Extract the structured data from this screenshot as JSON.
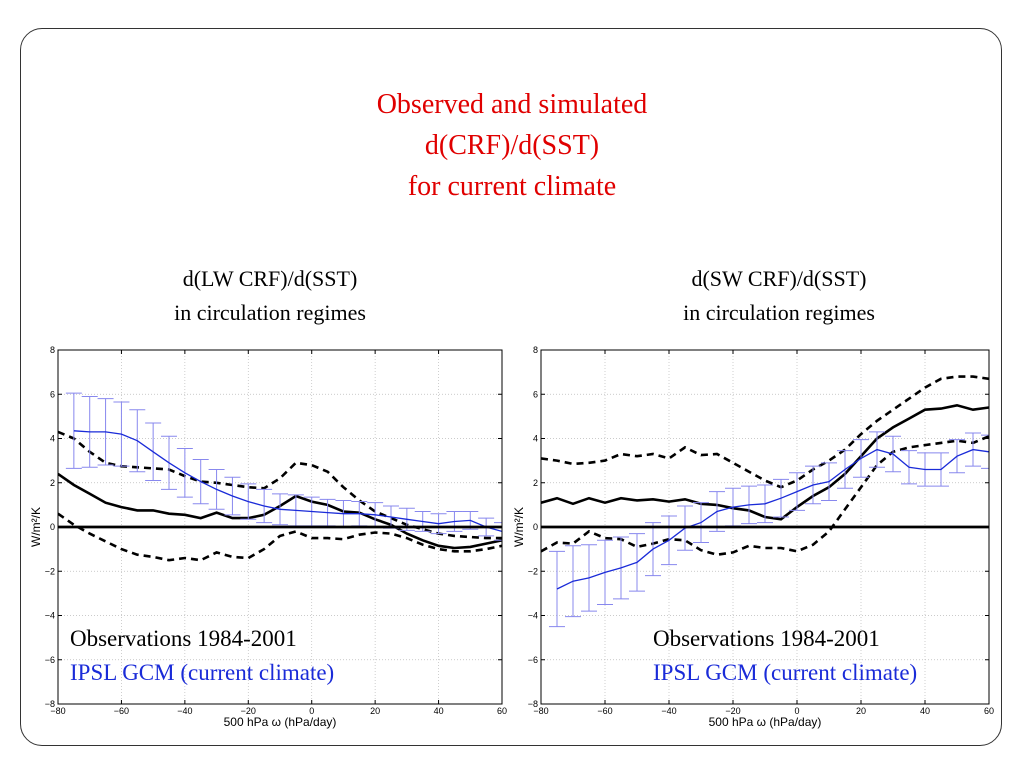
{
  "main_title": [
    "Observed and simulated",
    "d(CRF)/d(SST)",
    "for current climate"
  ],
  "legend": {
    "observations": "Observations 1984-2001",
    "gcm": "IPSL GCM (current climate)"
  },
  "colors": {
    "title": "#e00000",
    "gcm": "#1a2bd8",
    "obs": "#000000",
    "errorbar": "#8888ee"
  },
  "chart_data": [
    {
      "type": "line",
      "title": [
        "d(LW CRF)/d(SST)",
        "in circulation regimes"
      ],
      "xlabel": "500 hPa ω (hPa/day)",
      "ylabel": "W/m²/K",
      "xlim": [
        -80,
        60
      ],
      "ylim": [
        -8,
        8
      ],
      "xticks": [
        "−80",
        "−60",
        "−40",
        "−20",
        "0",
        "20",
        "40",
        "60"
      ],
      "yticks": [
        "−8",
        "−6",
        "−4",
        "−2",
        "0",
        "2",
        "4",
        "6",
        "8"
      ],
      "grid": true,
      "series": [
        {
          "style": "obs-solid",
          "x": [
            -80,
            -75,
            -70,
            -65,
            -60,
            -55,
            -50,
            -45,
            -40,
            -35,
            -30,
            -25,
            -20,
            -15,
            -10,
            -5,
            0,
            5,
            10,
            15,
            20,
            25,
            30,
            35,
            40,
            45,
            50,
            55,
            60
          ],
          "y": [
            2.4,
            1.9,
            1.5,
            1.1,
            0.9,
            0.75,
            0.75,
            0.6,
            0.55,
            0.4,
            0.65,
            0.4,
            0.4,
            0.55,
            0.95,
            1.4,
            1.15,
            1.0,
            0.7,
            0.65,
            0.35,
            0.1,
            -0.3,
            -0.6,
            -0.85,
            -0.95,
            -0.9,
            -0.75,
            -0.6
          ]
        },
        {
          "style": "obs-dashed",
          "x": [
            -80,
            -75,
            -70,
            -65,
            -60,
            -55,
            -50,
            -45,
            -40,
            -35,
            -30,
            -25,
            -20,
            -15,
            -10,
            -5,
            0,
            5,
            10,
            15,
            20,
            25,
            30,
            35,
            40,
            45,
            50,
            55,
            60
          ],
          "y": [
            4.3,
            4.0,
            3.4,
            2.9,
            2.75,
            2.7,
            2.65,
            2.6,
            2.3,
            2.05,
            2.0,
            1.9,
            1.8,
            1.75,
            2.2,
            2.9,
            2.8,
            2.5,
            1.8,
            1.2,
            0.7,
            0.4,
            0.1,
            -0.1,
            -0.3,
            -0.4,
            -0.45,
            -0.5,
            -0.5
          ]
        },
        {
          "style": "obs-dashed",
          "x": [
            -80,
            -75,
            -70,
            -65,
            -60,
            -55,
            -50,
            -45,
            -40,
            -35,
            -30,
            -25,
            -20,
            -15,
            -10,
            -5,
            0,
            5,
            10,
            15,
            20,
            25,
            30,
            35,
            40,
            45,
            50,
            55,
            60
          ],
          "y": [
            0.6,
            0.1,
            -0.3,
            -0.65,
            -1.0,
            -1.25,
            -1.35,
            -1.5,
            -1.4,
            -1.5,
            -1.15,
            -1.35,
            -1.4,
            -1.0,
            -0.4,
            -0.2,
            -0.5,
            -0.5,
            -0.55,
            -0.35,
            -0.25,
            -0.3,
            -0.5,
            -0.8,
            -1.0,
            -1.1,
            -1.1,
            -1.0,
            -0.85
          ]
        },
        {
          "style": "gcm",
          "x": [
            -75,
            -70,
            -65,
            -60,
            -55,
            -50,
            -45,
            -40,
            -35,
            -30,
            -25,
            -20,
            -15,
            -10,
            -5,
            0,
            5,
            10,
            15,
            20,
            25,
            30,
            35,
            40,
            45,
            50,
            55,
            60
          ],
          "y": [
            4.35,
            4.3,
            4.3,
            4.2,
            3.9,
            3.4,
            2.9,
            2.45,
            2.05,
            1.7,
            1.4,
            1.15,
            0.95,
            0.8,
            0.75,
            0.7,
            0.65,
            0.6,
            0.6,
            0.55,
            0.45,
            0.35,
            0.25,
            0.15,
            0.25,
            0.3,
            0.0,
            -0.2
          ],
          "err": [
            1.7,
            1.6,
            1.5,
            1.45,
            1.4,
            1.3,
            1.2,
            1.1,
            1.0,
            0.9,
            0.85,
            0.8,
            0.75,
            0.7,
            0.7,
            0.65,
            0.6,
            0.6,
            0.55,
            0.55,
            0.5,
            0.5,
            0.45,
            0.45,
            0.45,
            0.4,
            0.4,
            0.4
          ]
        }
      ]
    },
    {
      "type": "line",
      "title": [
        "d(SW CRF)/d(SST)",
        "in circulation regimes"
      ],
      "xlabel": "500 hPa ω (hPa/day)",
      "ylabel": "W/m²/K",
      "xlim": [
        -80,
        60
      ],
      "ylim": [
        -8,
        8
      ],
      "xticks": [
        "−80",
        "−60",
        "−40",
        "−20",
        "0",
        "20",
        "40",
        "60"
      ],
      "yticks": [
        "−8",
        "−6",
        "−4",
        "−2",
        "0",
        "2",
        "4",
        "6",
        "8"
      ],
      "grid": true,
      "series": [
        {
          "style": "obs-solid",
          "x": [
            -80,
            -75,
            -70,
            -65,
            -60,
            -55,
            -50,
            -45,
            -40,
            -35,
            -30,
            -25,
            -20,
            -15,
            -10,
            -5,
            0,
            5,
            10,
            15,
            20,
            25,
            30,
            35,
            40,
            45,
            50,
            55,
            60
          ],
          "y": [
            1.1,
            1.3,
            1.05,
            1.3,
            1.1,
            1.3,
            1.2,
            1.25,
            1.15,
            1.25,
            1.05,
            1.0,
            0.85,
            0.75,
            0.45,
            0.35,
            0.9,
            1.4,
            1.8,
            2.4,
            3.2,
            4.0,
            4.5,
            4.9,
            5.3,
            5.35,
            5.5,
            5.3,
            5.4
          ]
        },
        {
          "style": "obs-dashed",
          "x": [
            -80,
            -75,
            -70,
            -65,
            -60,
            -55,
            -50,
            -45,
            -40,
            -35,
            -30,
            -25,
            -20,
            -15,
            -10,
            -5,
            0,
            5,
            10,
            15,
            20,
            25,
            30,
            35,
            40,
            45,
            50,
            55,
            60
          ],
          "y": [
            3.1,
            3.0,
            2.85,
            2.9,
            3.0,
            3.3,
            3.2,
            3.3,
            3.1,
            3.6,
            3.25,
            3.3,
            2.9,
            2.5,
            2.1,
            1.8,
            2.1,
            2.6,
            3.0,
            3.5,
            4.2,
            4.8,
            5.3,
            5.8,
            6.3,
            6.7,
            6.8,
            6.8,
            6.7
          ]
        },
        {
          "style": "obs-dashed",
          "x": [
            -80,
            -75,
            -70,
            -65,
            -60,
            -55,
            -50,
            -45,
            -40,
            -35,
            -30,
            -25,
            -20,
            -15,
            -10,
            -5,
            0,
            5,
            10,
            15,
            20,
            25,
            30,
            35,
            40,
            45,
            50,
            55,
            60
          ],
          "y": [
            -1.1,
            -0.7,
            -0.75,
            -0.2,
            -0.5,
            -0.55,
            -0.9,
            -0.75,
            -0.55,
            -0.6,
            -1.05,
            -1.25,
            -1.15,
            -0.85,
            -0.95,
            -0.95,
            -1.1,
            -0.8,
            -0.2,
            0.8,
            1.8,
            2.8,
            3.4,
            3.6,
            3.7,
            3.8,
            3.9,
            3.8,
            4.1
          ]
        },
        {
          "style": "gcm",
          "x": [
            -75,
            -70,
            -65,
            -60,
            -55,
            -50,
            -45,
            -40,
            -35,
            -30,
            -25,
            -20,
            -15,
            -10,
            -5,
            0,
            5,
            10,
            15,
            20,
            25,
            30,
            35,
            40,
            45,
            50,
            55,
            60
          ],
          "y": [
            -2.8,
            -2.45,
            -2.3,
            -2.05,
            -1.85,
            -1.6,
            -1.0,
            -0.6,
            -0.05,
            0.2,
            0.7,
            0.9,
            1.0,
            1.05,
            1.3,
            1.6,
            1.9,
            2.05,
            2.6,
            3.1,
            3.5,
            3.3,
            2.7,
            2.6,
            2.6,
            3.2,
            3.5,
            3.4
          ],
          "err": [
            1.7,
            1.6,
            1.5,
            1.45,
            1.4,
            1.3,
            1.2,
            1.1,
            1.0,
            0.9,
            0.9,
            0.85,
            0.85,
            0.85,
            0.85,
            0.85,
            0.85,
            0.85,
            0.85,
            0.85,
            0.8,
            0.8,
            0.75,
            0.75,
            0.75,
            0.75,
            0.75,
            0.75
          ]
        }
      ]
    }
  ]
}
